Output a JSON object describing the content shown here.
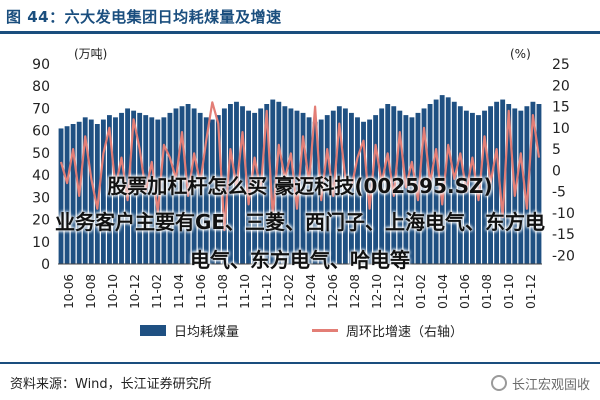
{
  "header": {
    "title": "图 44：六大发电集团日均耗煤量及增速"
  },
  "chart_data": {
    "type": "bar+line",
    "left_axis_unit": "(万吨)",
    "right_axis_unit": "(%)",
    "left_ticks": [
      "90",
      "80",
      "70",
      "60",
      "50",
      "40",
      "30",
      "20",
      "10",
      "0"
    ],
    "right_ticks": [
      "25",
      "20",
      "15",
      "10",
      "5",
      "0",
      "-5",
      "-10",
      "-15",
      "-20"
    ],
    "ylim_left": [
      0,
      90
    ],
    "ylim_right": [
      -22,
      25
    ],
    "x_ticks": [
      "10-06",
      "10-08",
      "10-10",
      "10-12",
      "11-02",
      "11-04",
      "11-06",
      "11-08",
      "11-10",
      "11-12",
      "12-02",
      "12-04",
      "12-06",
      "12-08",
      "12-10",
      "12-12",
      "01-02",
      "01-04",
      "01-06",
      "01-08",
      "01-10",
      "01-12"
    ],
    "series": [
      {
        "name": "日均耗煤量",
        "axis": "left",
        "color": "#1f5082",
        "values": [
          61,
          62,
          63,
          64,
          66,
          65,
          63,
          65,
          67,
          66,
          68,
          70,
          69,
          68,
          67,
          66,
          65,
          66,
          68,
          70,
          71,
          72,
          70,
          68,
          66,
          65,
          67,
          70,
          72,
          73,
          71,
          69,
          68,
          70,
          72,
          74,
          73,
          71,
          70,
          69,
          68,
          66,
          64,
          65,
          67,
          69,
          71,
          70,
          68,
          66,
          64,
          65,
          67,
          70,
          72,
          71,
          69,
          67,
          66,
          68,
          70,
          72,
          74,
          76,
          75,
          73,
          71,
          69,
          68,
          67,
          69,
          71,
          73,
          74,
          72,
          70,
          69,
          71,
          73,
          72
        ]
      },
      {
        "name": "周环比增速（右轴）",
        "axis": "right",
        "color": "#e37e76",
        "values": [
          2,
          -3,
          5,
          -6,
          8,
          -2,
          -9,
          4,
          10,
          -4,
          3,
          -7,
          12,
          5,
          -5,
          2,
          -10,
          6,
          3,
          -2,
          9,
          -6,
          4,
          -3,
          7,
          16,
          11,
          -14,
          5,
          -4,
          9,
          -8,
          3,
          -5,
          14,
          -11,
          6,
          -2,
          4,
          -9,
          8,
          -3,
          15,
          -7,
          5,
          -6,
          11,
          -2,
          -4,
          3,
          7,
          -9,
          6,
          -3,
          4,
          -6,
          9,
          -4,
          2,
          -7,
          10,
          -3,
          5,
          -8,
          6,
          -2,
          4,
          -5,
          3,
          -7,
          8,
          -3,
          5,
          -11,
          14,
          -6,
          4,
          -9,
          13,
          3
        ]
      }
    ]
  },
  "legend": {
    "bar_label": "日均耗煤量",
    "line_label": "周环比增速（右轴）"
  },
  "footer": {
    "source": "资料来源：Wind，长江证券研究所",
    "logo_text": "长江宏观固收"
  },
  "overlay": {
    "line1": "股票加杠杆怎么买 豪迈科技(002595.SZ)",
    "line2": "业务客户主要有GE、三菱、西门子、上海电气、东方电",
    "line3": "电气、东方电气、哈电等"
  }
}
